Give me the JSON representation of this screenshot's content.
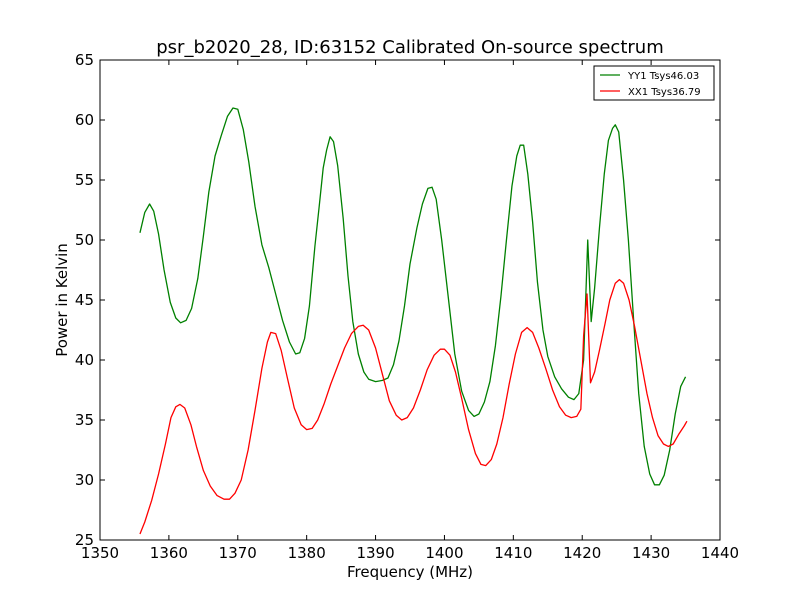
{
  "chart_data": {
    "type": "line",
    "title": "psr_b2020_28, ID:63152 Calibrated On-source spectrum",
    "xlabel": "Frequency (MHz)",
    "ylabel": "Power in Kelvin",
    "xlim": [
      1350,
      1440
    ],
    "ylim": [
      25,
      65
    ],
    "xticks": [
      1350,
      1360,
      1370,
      1380,
      1390,
      1400,
      1410,
      1420,
      1430,
      1440
    ],
    "yticks": [
      25,
      30,
      35,
      40,
      45,
      50,
      55,
      60,
      65
    ],
    "grid": false,
    "legend_position": "top-right",
    "series": [
      {
        "name": "YY1 Tsys46.03",
        "color": "#008000",
        "points": [
          [
            1355.8,
            50.6
          ],
          [
            1356.5,
            52.3
          ],
          [
            1357.2,
            53.0
          ],
          [
            1357.8,
            52.4
          ],
          [
            1358.5,
            50.5
          ],
          [
            1359.3,
            47.5
          ],
          [
            1360.2,
            44.8
          ],
          [
            1361.0,
            43.5
          ],
          [
            1361.7,
            43.1
          ],
          [
            1362.5,
            43.3
          ],
          [
            1363.3,
            44.3
          ],
          [
            1364.2,
            46.8
          ],
          [
            1365.0,
            50.3
          ],
          [
            1365.8,
            54.0
          ],
          [
            1366.7,
            57.0
          ],
          [
            1367.6,
            58.7
          ],
          [
            1368.5,
            60.3
          ],
          [
            1369.3,
            61.0
          ],
          [
            1370.0,
            60.9
          ],
          [
            1370.8,
            59.2
          ],
          [
            1371.6,
            56.5
          ],
          [
            1372.5,
            52.8
          ],
          [
            1373.5,
            49.6
          ],
          [
            1374.5,
            47.7
          ],
          [
            1375.5,
            45.5
          ],
          [
            1376.5,
            43.3
          ],
          [
            1377.5,
            41.5
          ],
          [
            1378.4,
            40.5
          ],
          [
            1379.0,
            40.6
          ],
          [
            1379.7,
            41.8
          ],
          [
            1380.4,
            44.5
          ],
          [
            1381.2,
            49.5
          ],
          [
            1381.8,
            52.7
          ],
          [
            1382.4,
            56.0
          ],
          [
            1382.9,
            57.5
          ],
          [
            1383.4,
            58.6
          ],
          [
            1383.9,
            58.2
          ],
          [
            1384.5,
            56.2
          ],
          [
            1385.3,
            51.8
          ],
          [
            1386.0,
            47.0
          ],
          [
            1386.7,
            43.2
          ],
          [
            1387.5,
            40.5
          ],
          [
            1388.3,
            39.0
          ],
          [
            1389.0,
            38.4
          ],
          [
            1390.0,
            38.2
          ],
          [
            1391.0,
            38.3
          ],
          [
            1391.8,
            38.5
          ],
          [
            1392.6,
            39.6
          ],
          [
            1393.4,
            41.6
          ],
          [
            1394.2,
            44.5
          ],
          [
            1395.0,
            48.0
          ],
          [
            1396.0,
            51.0
          ],
          [
            1396.8,
            53.0
          ],
          [
            1397.6,
            54.3
          ],
          [
            1398.2,
            54.4
          ],
          [
            1398.8,
            53.4
          ],
          [
            1399.6,
            50.0
          ],
          [
            1400.5,
            45.5
          ],
          [
            1401.5,
            40.5
          ],
          [
            1402.5,
            37.4
          ],
          [
            1403.5,
            35.8
          ],
          [
            1404.3,
            35.3
          ],
          [
            1405.0,
            35.5
          ],
          [
            1405.8,
            36.5
          ],
          [
            1406.6,
            38.2
          ],
          [
            1407.4,
            41.2
          ],
          [
            1408.2,
            45.3
          ],
          [
            1409.0,
            50.0
          ],
          [
            1409.8,
            54.5
          ],
          [
            1410.5,
            57.0
          ],
          [
            1411.0,
            57.9
          ],
          [
            1411.5,
            57.9
          ],
          [
            1412.1,
            55.5
          ],
          [
            1412.8,
            51.5
          ],
          [
            1413.5,
            46.5
          ],
          [
            1414.3,
            42.5
          ],
          [
            1415.0,
            40.3
          ],
          [
            1416.0,
            38.6
          ],
          [
            1417.0,
            37.6
          ],
          [
            1418.0,
            36.9
          ],
          [
            1418.8,
            36.7
          ],
          [
            1419.5,
            37.2
          ],
          [
            1420.2,
            40.0
          ],
          [
            1420.8,
            50.0
          ],
          [
            1421.3,
            43.2
          ],
          [
            1421.8,
            46.0
          ],
          [
            1422.5,
            51.0
          ],
          [
            1423.2,
            55.5
          ],
          [
            1423.8,
            58.3
          ],
          [
            1424.4,
            59.3
          ],
          [
            1424.8,
            59.6
          ],
          [
            1425.3,
            59.0
          ],
          [
            1426.0,
            55.0
          ],
          [
            1426.7,
            50.0
          ],
          [
            1427.5,
            43.0
          ],
          [
            1428.2,
            37.2
          ],
          [
            1429.0,
            32.8
          ],
          [
            1429.8,
            30.5
          ],
          [
            1430.5,
            29.6
          ],
          [
            1431.2,
            29.6
          ],
          [
            1431.9,
            30.4
          ],
          [
            1432.7,
            32.5
          ],
          [
            1433.5,
            35.5
          ],
          [
            1434.3,
            37.8
          ],
          [
            1435.0,
            38.6
          ]
        ]
      },
      {
        "name": "XX1 Tsys36.79",
        "color": "#ff0000",
        "points": [
          [
            1355.8,
            25.5
          ],
          [
            1356.5,
            26.5
          ],
          [
            1357.5,
            28.3
          ],
          [
            1358.5,
            30.5
          ],
          [
            1359.5,
            33.0
          ],
          [
            1360.3,
            35.2
          ],
          [
            1361.0,
            36.1
          ],
          [
            1361.6,
            36.3
          ],
          [
            1362.3,
            36.0
          ],
          [
            1363.2,
            34.6
          ],
          [
            1364.0,
            32.8
          ],
          [
            1365.0,
            30.8
          ],
          [
            1366.0,
            29.5
          ],
          [
            1367.0,
            28.7
          ],
          [
            1368.0,
            28.4
          ],
          [
            1368.8,
            28.4
          ],
          [
            1369.6,
            28.9
          ],
          [
            1370.5,
            30.0
          ],
          [
            1371.5,
            32.5
          ],
          [
            1372.5,
            35.8
          ],
          [
            1373.5,
            39.3
          ],
          [
            1374.3,
            41.5
          ],
          [
            1374.8,
            42.3
          ],
          [
            1375.5,
            42.2
          ],
          [
            1376.3,
            40.8
          ],
          [
            1377.2,
            38.5
          ],
          [
            1378.2,
            36.0
          ],
          [
            1379.2,
            34.6
          ],
          [
            1380.0,
            34.2
          ],
          [
            1380.8,
            34.3
          ],
          [
            1381.6,
            35.0
          ],
          [
            1382.5,
            36.3
          ],
          [
            1383.5,
            38.0
          ],
          [
            1384.5,
            39.5
          ],
          [
            1385.5,
            41.0
          ],
          [
            1386.5,
            42.2
          ],
          [
            1387.5,
            42.8
          ],
          [
            1388.2,
            42.9
          ],
          [
            1389.0,
            42.5
          ],
          [
            1390.0,
            41.0
          ],
          [
            1391.0,
            38.8
          ],
          [
            1392.0,
            36.6
          ],
          [
            1393.0,
            35.4
          ],
          [
            1393.8,
            35.0
          ],
          [
            1394.6,
            35.2
          ],
          [
            1395.5,
            36.0
          ],
          [
            1396.5,
            37.5
          ],
          [
            1397.5,
            39.2
          ],
          [
            1398.5,
            40.4
          ],
          [
            1399.4,
            40.9
          ],
          [
            1400.0,
            40.9
          ],
          [
            1400.8,
            40.4
          ],
          [
            1401.6,
            39.0
          ],
          [
            1402.5,
            36.8
          ],
          [
            1403.5,
            34.2
          ],
          [
            1404.5,
            32.2
          ],
          [
            1405.3,
            31.3
          ],
          [
            1406.0,
            31.2
          ],
          [
            1406.8,
            31.7
          ],
          [
            1407.6,
            33.0
          ],
          [
            1408.5,
            35.2
          ],
          [
            1409.4,
            38.0
          ],
          [
            1410.3,
            40.5
          ],
          [
            1411.2,
            42.3
          ],
          [
            1412.0,
            42.7
          ],
          [
            1412.8,
            42.3
          ],
          [
            1413.7,
            41.0
          ],
          [
            1414.7,
            39.3
          ],
          [
            1415.7,
            37.5
          ],
          [
            1416.7,
            36.1
          ],
          [
            1417.6,
            35.4
          ],
          [
            1418.4,
            35.2
          ],
          [
            1419.2,
            35.3
          ],
          [
            1419.8,
            35.9
          ],
          [
            1420.2,
            42.0
          ],
          [
            1420.7,
            45.5
          ],
          [
            1421.2,
            38.1
          ],
          [
            1421.8,
            39.0
          ],
          [
            1422.5,
            40.8
          ],
          [
            1423.3,
            43.0
          ],
          [
            1424.0,
            45.0
          ],
          [
            1424.8,
            46.4
          ],
          [
            1425.4,
            46.7
          ],
          [
            1426.0,
            46.4
          ],
          [
            1426.8,
            45.0
          ],
          [
            1427.6,
            42.8
          ],
          [
            1428.5,
            40.0
          ],
          [
            1429.4,
            37.2
          ],
          [
            1430.2,
            35.2
          ],
          [
            1431.0,
            33.7
          ],
          [
            1431.8,
            33.0
          ],
          [
            1432.5,
            32.8
          ],
          [
            1433.2,
            33.0
          ],
          [
            1434.0,
            33.8
          ],
          [
            1434.8,
            34.5
          ],
          [
            1435.2,
            34.9
          ]
        ]
      }
    ]
  }
}
